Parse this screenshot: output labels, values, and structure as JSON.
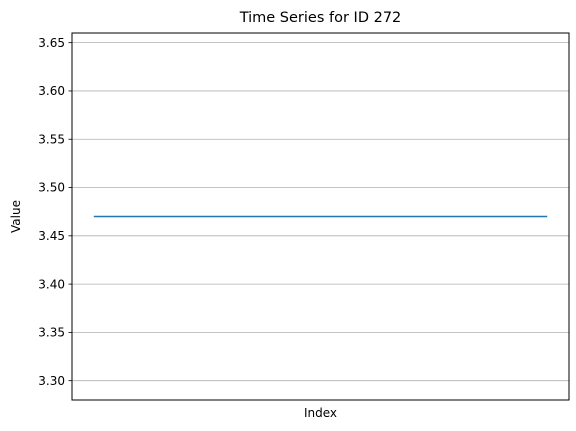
{
  "chart_data": {
    "type": "line",
    "title": "Time Series for ID 272",
    "xlabel": "Index",
    "ylabel": "Value",
    "ylim": [
      3.28,
      3.66
    ],
    "yticks": [
      "3.30",
      "3.35",
      "3.40",
      "3.45",
      "3.50",
      "3.55",
      "3.60",
      "3.65"
    ],
    "ytick_values": [
      3.3,
      3.35,
      3.4,
      3.45,
      3.5,
      3.55,
      3.6,
      3.65
    ],
    "xticks_visible": false,
    "grid": "horizontal",
    "series": [
      {
        "color": "#1f77b4",
        "x": [
          0,
          1
        ],
        "values": [
          3.47,
          3.47
        ]
      }
    ]
  }
}
